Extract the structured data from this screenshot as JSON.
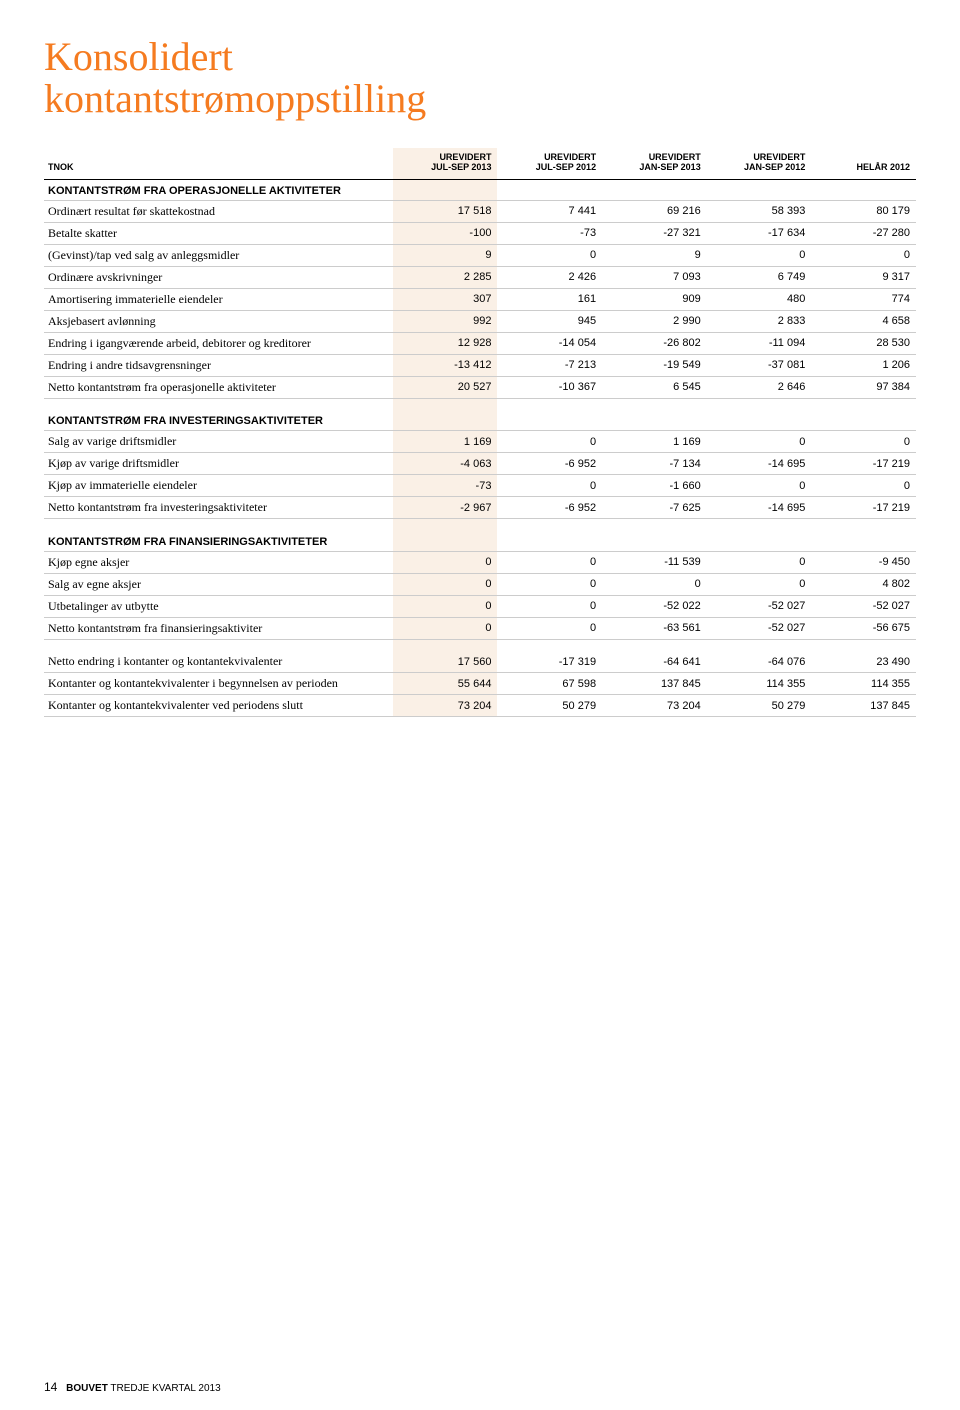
{
  "title_line1": "Konsolidert",
  "title_line2": "kontantstrømoppstilling",
  "columns": [
    {
      "l1": "",
      "l2": "TNOK"
    },
    {
      "l1": "UREVIDERT",
      "l2": "JUL-SEP 2013"
    },
    {
      "l1": "UREVIDERT",
      "l2": "JUL-SEP 2012"
    },
    {
      "l1": "UREVIDERT",
      "l2": "JAN-SEP 2013"
    },
    {
      "l1": "UREVIDERT",
      "l2": "JAN-SEP 2012"
    },
    {
      "l1": "",
      "l2": "HELÅR 2012"
    }
  ],
  "highlight_col_index": 1,
  "highlight_bg": "#faf0e6",
  "sections": [
    {
      "header": "KONTANTSTRØM FRA OPERASJONELLE AKTIVITETER",
      "rows": [
        {
          "label": "Ordinært resultat før skattekostnad",
          "v": [
            "17 518",
            "7 441",
            "69 216",
            "58 393",
            "80 179"
          ]
        },
        {
          "label": "Betalte skatter",
          "v": [
            "-100",
            "-73",
            "-27 321",
            "-17 634",
            "-27 280"
          ]
        },
        {
          "label": "(Gevinst)/tap ved salg av anleggsmidler",
          "v": [
            "9",
            "0",
            "9",
            "0",
            "0"
          ]
        },
        {
          "label": "Ordinære avskrivninger",
          "v": [
            "2 285",
            "2 426",
            "7 093",
            "6 749",
            "9 317"
          ]
        },
        {
          "label": "Amortisering immaterielle eiendeler",
          "v": [
            "307",
            "161",
            "909",
            "480",
            "774"
          ]
        },
        {
          "label": "Aksjebasert avlønning",
          "v": [
            "992",
            "945",
            "2 990",
            "2 833",
            "4 658"
          ]
        },
        {
          "label": "Endring i igangværende arbeid, debitorer og kreditorer",
          "v": [
            "12 928",
            "-14 054",
            "-26 802",
            "-11 094",
            "28 530"
          ]
        },
        {
          "label": "Endring i andre tidsavgrensninger",
          "v": [
            "-13 412",
            "-7 213",
            "-19 549",
            "-37 081",
            "1 206"
          ]
        },
        {
          "label": "Netto kontantstrøm fra operasjonelle aktiviteter",
          "v": [
            "20 527",
            "-10 367",
            "6 545",
            "2 646",
            "97 384"
          ]
        }
      ]
    },
    {
      "header": "KONTANTSTRØM FRA INVESTERINGSAKTIVITETER",
      "rows": [
        {
          "label": "Salg av varige driftsmidler",
          "v": [
            "1 169",
            "0",
            "1 169",
            "0",
            "0"
          ]
        },
        {
          "label": "Kjøp av varige driftsmidler",
          "v": [
            "-4 063",
            "-6 952",
            "-7 134",
            "-14 695",
            "-17 219"
          ]
        },
        {
          "label": "Kjøp av immaterielle eiendeler",
          "v": [
            "-73",
            "0",
            "-1 660",
            "0",
            "0"
          ]
        },
        {
          "label": "Netto kontantstrøm fra investeringsaktiviteter",
          "v": [
            "-2 967",
            "-6 952",
            "-7 625",
            "-14 695",
            "-17 219"
          ]
        }
      ]
    },
    {
      "header": "KONTANTSTRØM FRA FINANSIERINGSAKTIVITETER",
      "rows": [
        {
          "label": "Kjøp egne aksjer",
          "v": [
            "0",
            "0",
            "-11 539",
            "0",
            "-9 450"
          ]
        },
        {
          "label": "Salg av egne aksjer",
          "v": [
            "0",
            "0",
            "0",
            "0",
            "4 802"
          ]
        },
        {
          "label": "Utbetalinger av utbytte",
          "v": [
            "0",
            "0",
            "-52 022",
            "-52 027",
            "-52 027"
          ]
        },
        {
          "label": "Netto kontantstrøm fra finansieringsaktiviter",
          "v": [
            "0",
            "0",
            "-63 561",
            "-52 027",
            "-56 675"
          ]
        }
      ]
    },
    {
      "header": "",
      "rows": [
        {
          "label": "Netto endring i kontanter og kontantekvivalenter",
          "v": [
            "17 560",
            "-17 319",
            "-64 641",
            "-64 076",
            "23 490"
          ]
        },
        {
          "label": "Kontanter og kontantekvivalenter i begynnelsen av perioden",
          "v": [
            "55 644",
            "67 598",
            "137 845",
            "114 355",
            "114 355"
          ]
        },
        {
          "label": "Kontanter og kontantekvivalenter ved periodens slutt",
          "v": [
            "73 204",
            "50 279",
            "73 204",
            "50 279",
            "137 845"
          ]
        }
      ]
    }
  ],
  "footer": {
    "page": "14",
    "brand": "BOUVET",
    "rest": " TREDJE KVARTAL 2013"
  },
  "style": {
    "accent_color": "#f57b20",
    "border_color": "#cccccc",
    "header_border": "#000000",
    "body_font": "Georgia, serif",
    "num_font": "Arial, Helvetica, sans-serif"
  }
}
